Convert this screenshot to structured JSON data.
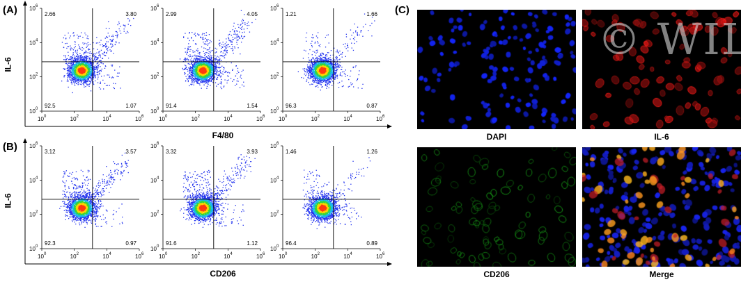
{
  "panels": {
    "a": "(A)",
    "b": "(B)",
    "c": "(C)"
  },
  "flow_rows": [
    {
      "ylabel": "IL-6",
      "xlabel": "F4/80",
      "plots": [
        {
          "quadrants": {
            "ul": "2.66",
            "ur": "3.80",
            "ll": "92.5",
            "lr": "1.07"
          }
        },
        {
          "quadrants": {
            "ul": "2.99",
            "ur": "4.05",
            "ll": "91.4",
            "lr": "1.54"
          }
        },
        {
          "quadrants": {
            "ul": "1.21",
            "ur": "1.66",
            "ll": "96.3",
            "lr": "0.87"
          }
        }
      ]
    },
    {
      "ylabel": "IL-6",
      "xlabel": "CD206",
      "plots": [
        {
          "quadrants": {
            "ul": "3.12",
            "ur": "3.57",
            "ll": "92.3",
            "lr": "0.97"
          }
        },
        {
          "quadrants": {
            "ul": "3.32",
            "ur": "3.93",
            "ll": "91.6",
            "lr": "1.12"
          }
        },
        {
          "quadrants": {
            "ul": "1.46",
            "ur": "1.26",
            "ll": "96.4",
            "lr": "0.89"
          }
        }
      ]
    }
  ],
  "axis_ticks": [
    "0",
    "2",
    "4",
    "6"
  ],
  "axis_tick_base": "10",
  "microscopy": [
    {
      "label": "DAPI",
      "channel": "blue"
    },
    {
      "label": "IL-6",
      "channel": "red"
    },
    {
      "label": "CD206",
      "channel": "green"
    },
    {
      "label": "Merge",
      "channel": "merge"
    }
  ],
  "watermark": "© WILE",
  "colors": {
    "dapi": "#1a2dff",
    "il6": "#d11a1a",
    "cd206": "#1f9a2a",
    "merge_orange": "#ff8a1a"
  },
  "chart_data": [
    {
      "type": "scatter",
      "row": "A",
      "xlabel": "F4/80",
      "ylabel": "IL-6",
      "xscale": "log",
      "yscale": "log",
      "xlim": [
        1,
        1000000
      ],
      "ylim": [
        1,
        1000000
      ],
      "quadrant_percent": {
        "upper_left": 2.66,
        "upper_right": 3.8,
        "lower_left": 92.5,
        "lower_right": 1.07
      }
    },
    {
      "type": "scatter",
      "row": "A",
      "xlabel": "F4/80",
      "ylabel": "IL-6",
      "xscale": "log",
      "yscale": "log",
      "xlim": [
        1,
        1000000
      ],
      "ylim": [
        1,
        1000000
      ],
      "quadrant_percent": {
        "upper_left": 2.99,
        "upper_right": 4.05,
        "lower_left": 91.4,
        "lower_right": 1.54
      }
    },
    {
      "type": "scatter",
      "row": "A",
      "xlabel": "F4/80",
      "ylabel": "IL-6",
      "xscale": "log",
      "yscale": "log",
      "xlim": [
        1,
        1000000
      ],
      "ylim": [
        1,
        1000000
      ],
      "quadrant_percent": {
        "upper_left": 1.21,
        "upper_right": 1.66,
        "lower_left": 96.3,
        "lower_right": 0.87
      }
    },
    {
      "type": "scatter",
      "row": "B",
      "xlabel": "CD206",
      "ylabel": "IL-6",
      "xscale": "log",
      "yscale": "log",
      "xlim": [
        1,
        1000000
      ],
      "ylim": [
        1,
        1000000
      ],
      "quadrant_percent": {
        "upper_left": 3.12,
        "upper_right": 3.57,
        "lower_left": 92.3,
        "lower_right": 0.97
      }
    },
    {
      "type": "scatter",
      "row": "B",
      "xlabel": "CD206",
      "ylabel": "IL-6",
      "xscale": "log",
      "yscale": "log",
      "xlim": [
        1,
        1000000
      ],
      "ylim": [
        1,
        1000000
      ],
      "quadrant_percent": {
        "upper_left": 3.32,
        "upper_right": 3.93,
        "lower_left": 91.6,
        "lower_right": 1.12
      }
    },
    {
      "type": "scatter",
      "row": "B",
      "xlabel": "CD206",
      "ylabel": "IL-6",
      "xscale": "log",
      "yscale": "log",
      "xlim": [
        1,
        1000000
      ],
      "ylim": [
        1,
        1000000
      ],
      "quadrant_percent": {
        "upper_left": 1.46,
        "upper_right": 1.26,
        "lower_left": 96.4,
        "lower_right": 0.89
      }
    }
  ]
}
